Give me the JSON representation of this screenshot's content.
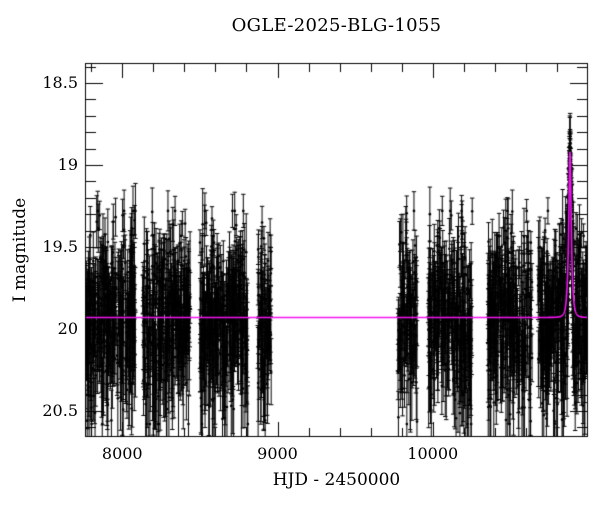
{
  "chart_data": {
    "type": "scatter",
    "title": "OGLE-2025-BLG-1055",
    "xlabel": "HJD - 2450000",
    "ylabel": "I magnitude",
    "x_range": [
      7760,
      11000
    ],
    "y_range_mag": [
      18.378,
      20.659
    ],
    "y_axis_inverted": true,
    "x_major_ticks": [
      {
        "value": 8000,
        "label": "8000"
      },
      {
        "value": 9000,
        "label": "9000"
      },
      {
        "value": 10000,
        "label": "10000"
      }
    ],
    "x_minor_step": 200,
    "y_major_ticks": [
      {
        "value": 18.5,
        "label": "18.5"
      },
      {
        "value": 19.0,
        "label": "19"
      },
      {
        "value": 19.5,
        "label": "19.5"
      },
      {
        "value": 20.0,
        "label": "20"
      },
      {
        "value": 20.5,
        "label": "20.5"
      }
    ],
    "y_minor_step": 0.1,
    "grid": false,
    "legend": false,
    "point_color": "#000000",
    "model_color": "#f314f3",
    "model": {
      "type": "paczynski_point_lens",
      "t0": 10884,
      "tE": 15,
      "u0": 0.42,
      "baseline_mag": 19.93,
      "peak_mag": 18.93
    },
    "scatter_sigma_mag": 0.27,
    "noise_seed": 1055,
    "seasons": [
      {
        "t_start": 7760,
        "t_end": 8085,
        "n": 330
      },
      {
        "t_start": 8132,
        "t_end": 8438,
        "n": 310
      },
      {
        "t_start": 8500,
        "t_end": 8812,
        "n": 310
      },
      {
        "t_start": 8872,
        "t_end": 8960,
        "n": 85
      },
      {
        "t_start": 9775,
        "t_end": 9900,
        "n": 120
      },
      {
        "t_start": 9968,
        "t_end": 10255,
        "n": 280
      },
      {
        "t_start": 10355,
        "t_end": 10640,
        "n": 280
      },
      {
        "t_start": 10678,
        "t_end": 10990,
        "n": 330,
        "peak_extra_n": 140,
        "peak_window": 20
      }
    ]
  }
}
